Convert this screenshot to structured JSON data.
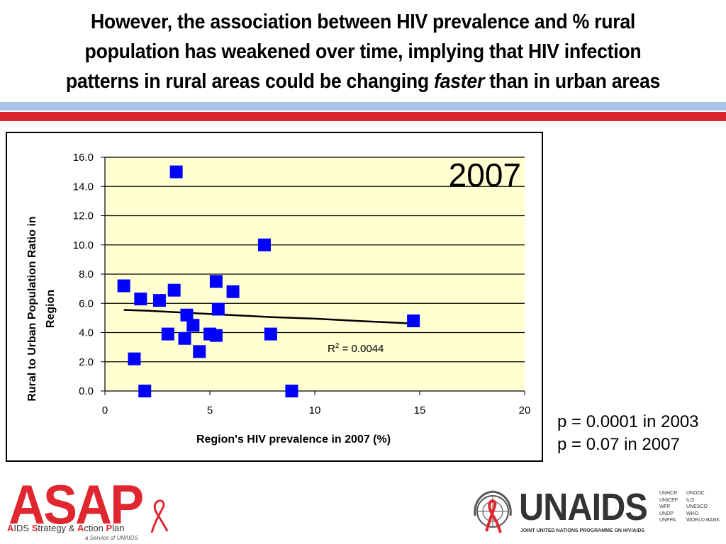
{
  "slide": {
    "title_line1": "However, the association between HIV prevalence and % rural",
    "title_line2": "population has weakened over time, implying that HIV infection",
    "title_line3_pre": "patterns in rural areas could be changing ",
    "title_line3_em": "faster",
    "title_line3_post": " than in urban areas",
    "p_values": [
      "p = 0.0001 in 2003",
      "p = 0.07 in 2007"
    ],
    "band_colors": {
      "blue": "#a9c6ea",
      "red": "#d9262c"
    }
  },
  "chart_data": {
    "type": "scatter",
    "year_label": "2007",
    "xlabel": "Region's HIV prevalence in 2007 (%)",
    "ylabel": "Rural to Urban Population Ratio in Region",
    "ylabel_lines": [
      "Rural to Urban Population Ratio in",
      "Region"
    ],
    "xlim": [
      0,
      20
    ],
    "ylim": [
      0,
      16
    ],
    "x_ticks": [
      "0",
      "5",
      "10",
      "15",
      "20"
    ],
    "y_ticks": [
      "0.0",
      "2.0",
      "4.0",
      "6.0",
      "8.0",
      "10.0",
      "12.0",
      "14.0",
      "16.0"
    ],
    "grid": "horizontal",
    "plot_background": "#ffffd2",
    "marker_color": "#0000ff",
    "trendline_color": "#000000",
    "r_squared_label": "R",
    "r_squared_sup": "2",
    "r_squared_value": " = 0.0044",
    "points": [
      {
        "x": 0.9,
        "y": 7.2
      },
      {
        "x": 1.4,
        "y": 2.2
      },
      {
        "x": 1.7,
        "y": 6.3
      },
      {
        "x": 1.9,
        "y": 0.0
      },
      {
        "x": 2.6,
        "y": 6.2
      },
      {
        "x": 3.0,
        "y": 3.9
      },
      {
        "x": 3.3,
        "y": 6.9
      },
      {
        "x": 3.4,
        "y": 15.0
      },
      {
        "x": 3.8,
        "y": 3.6
      },
      {
        "x": 3.9,
        "y": 5.2
      },
      {
        "x": 4.2,
        "y": 4.5
      },
      {
        "x": 4.5,
        "y": 2.7
      },
      {
        "x": 5.0,
        "y": 3.9
      },
      {
        "x": 5.3,
        "y": 7.5
      },
      {
        "x": 5.3,
        "y": 3.8
      },
      {
        "x": 5.4,
        "y": 5.6
      },
      {
        "x": 6.1,
        "y": 6.8
      },
      {
        "x": 7.6,
        "y": 10.0
      },
      {
        "x": 7.9,
        "y": 3.9
      },
      {
        "x": 8.9,
        "y": 0.0
      },
      {
        "x": 14.7,
        "y": 4.8
      }
    ],
    "trendline": [
      {
        "x": 0.9,
        "y": 5.55
      },
      {
        "x": 2.0,
        "y": 5.5
      },
      {
        "x": 4.0,
        "y": 5.35
      },
      {
        "x": 6.0,
        "y": 5.2
      },
      {
        "x": 8.0,
        "y": 5.05
      },
      {
        "x": 10.0,
        "y": 4.95
      },
      {
        "x": 12.0,
        "y": 4.8
      },
      {
        "x": 14.7,
        "y": 4.62
      }
    ]
  },
  "logos": {
    "asap": {
      "word": "ASAP",
      "subtitle_parts": [
        "A",
        "IDS ",
        "S",
        "trategy & ",
        "A",
        "ction ",
        "P",
        "lan"
      ],
      "small": "a Service of UNAIDS"
    },
    "unaids": {
      "word": "UNAIDS",
      "tagline": "JOINT UNITED NATIONS PROGRAMME ON HIV/AIDS",
      "cosponsors_col1": "UNHCR\nUNICEF\nWFP\nUNDP\nUNFPA",
      "cosponsors_col2": "UNODC\nILO\nUNESCO\nWHO\nWORLD BANK"
    }
  }
}
